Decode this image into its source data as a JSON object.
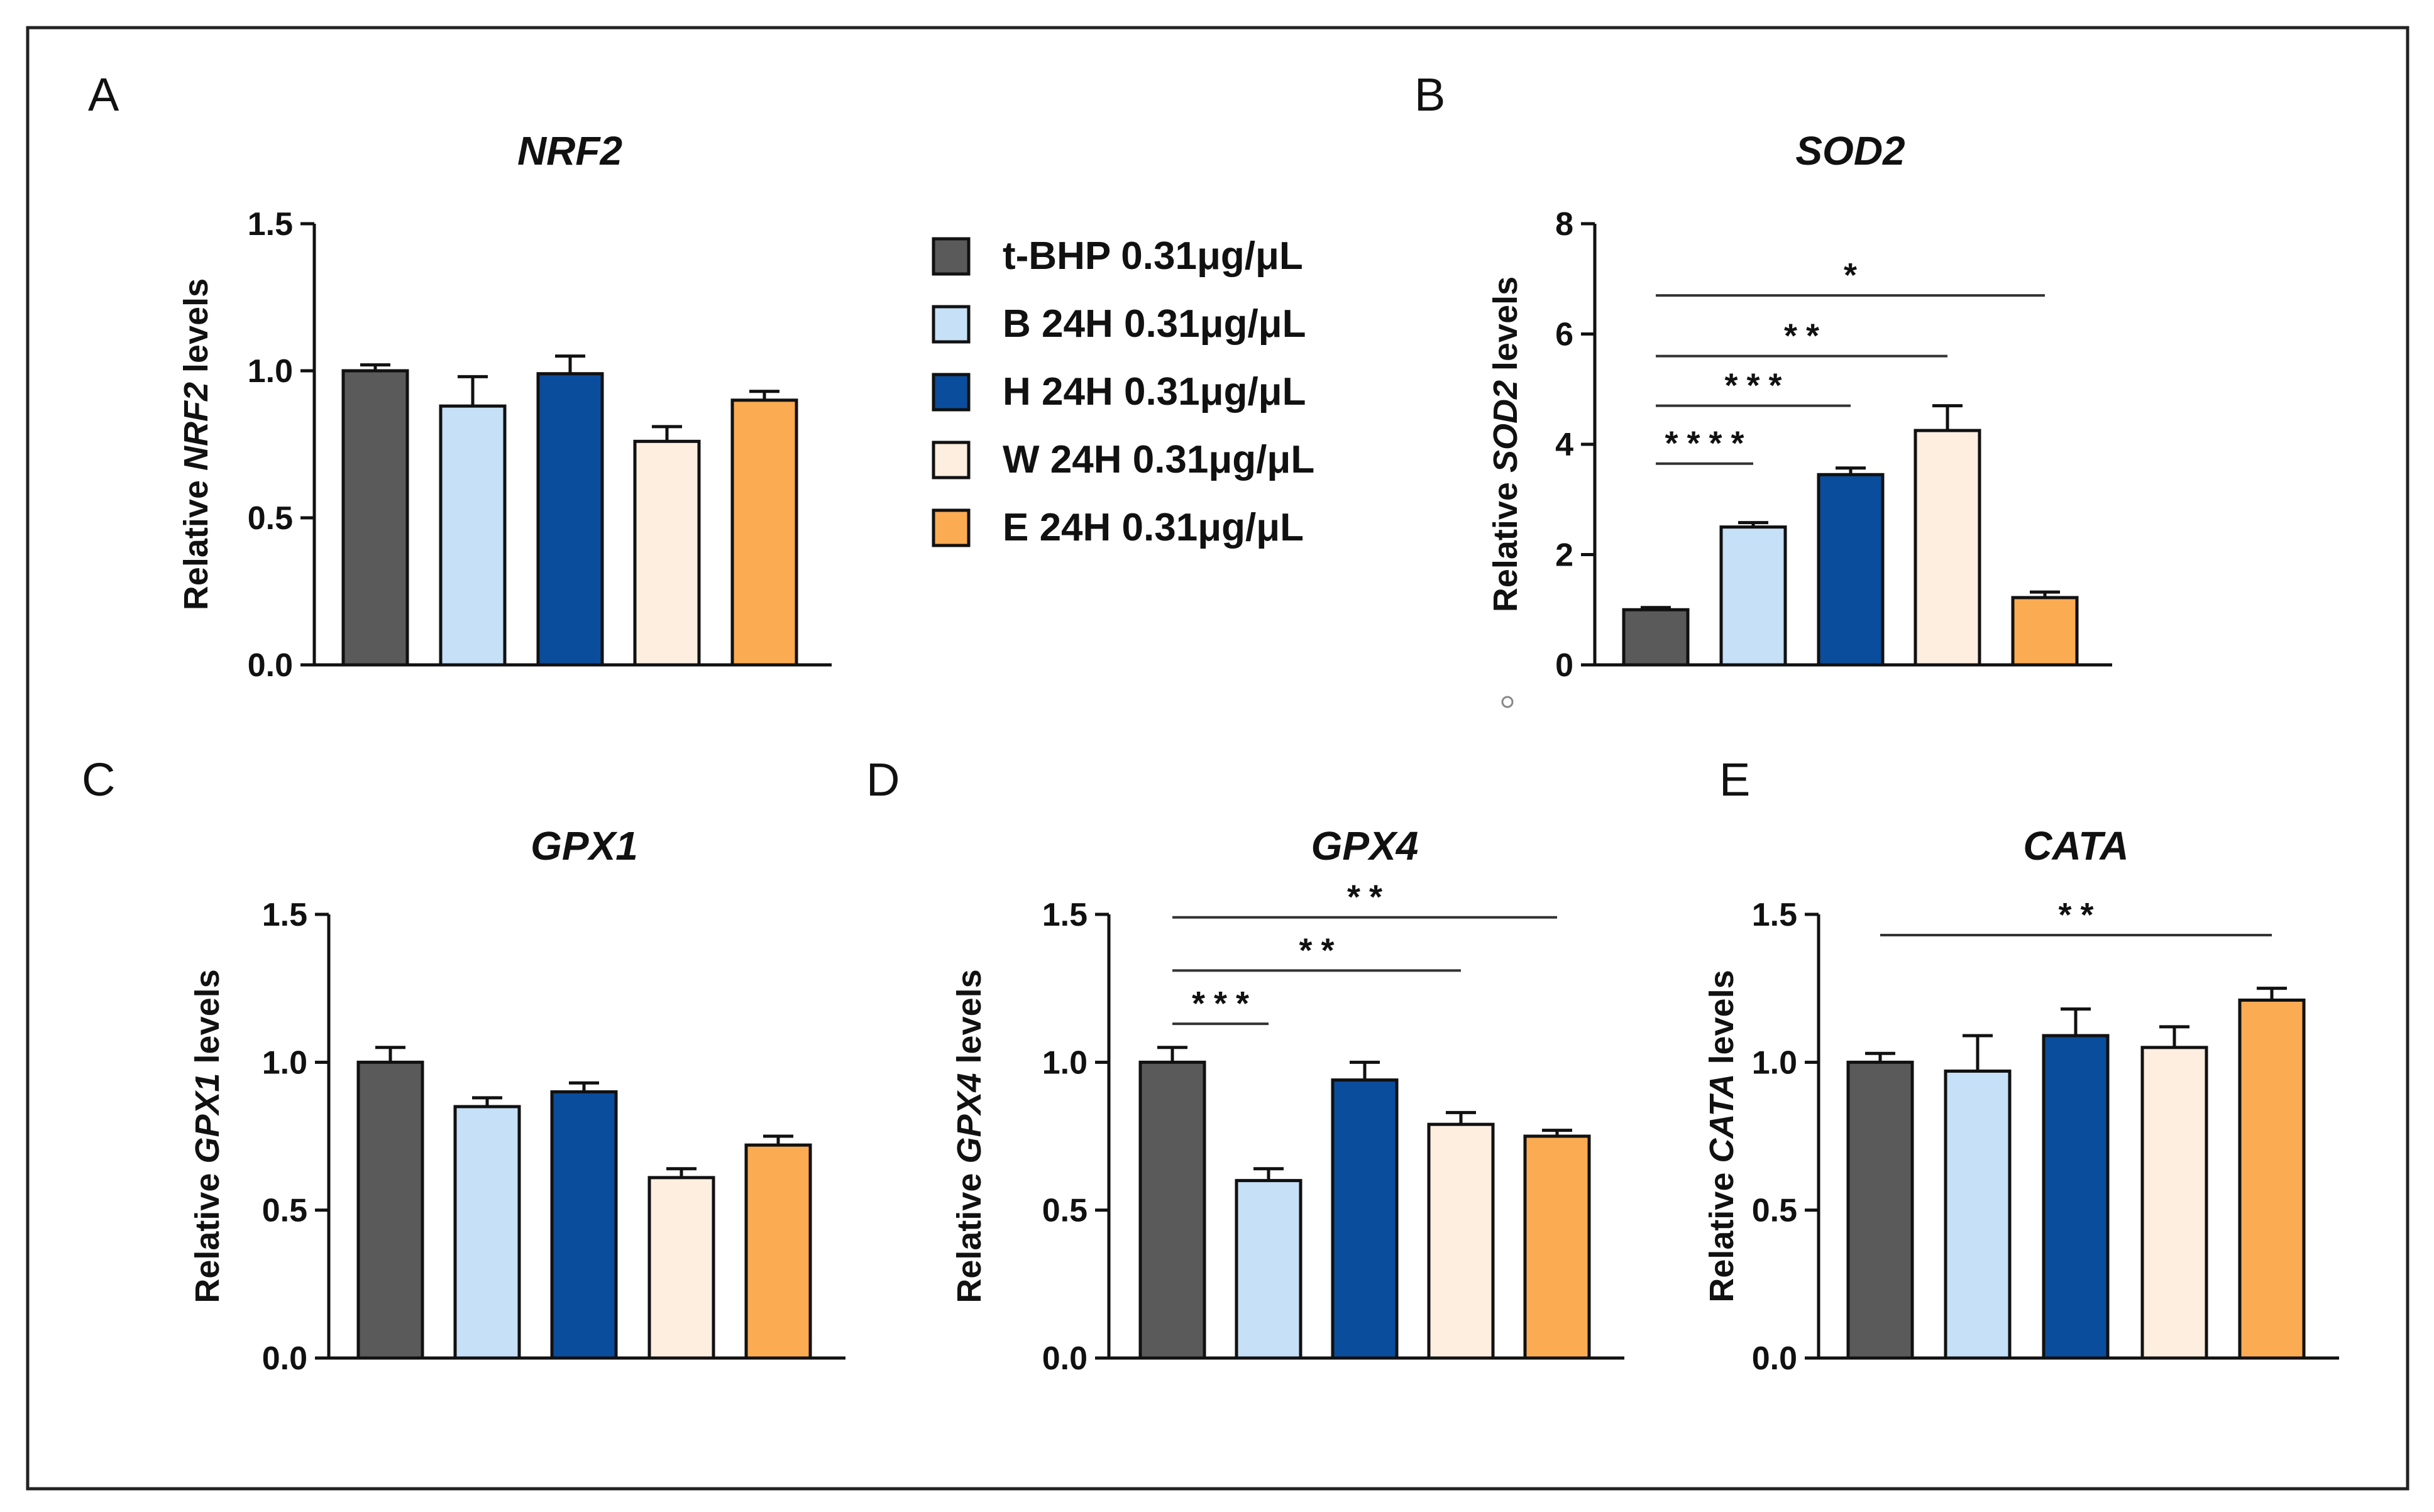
{
  "colors": {
    "tbhp": "#5a5a5a",
    "b24": "#c5e0f7",
    "h24": "#0a4d9c",
    "w24": "#fdeee0",
    "e24": "#fbab52",
    "stroke": "#111111"
  },
  "legend": [
    {
      "label": "t-BHP 0.31μg/μL",
      "color_key": "tbhp"
    },
    {
      "label": "B 24H 0.31μg/μL",
      "color_key": "b24"
    },
    {
      "label": "H 24H 0.31μg/μL",
      "color_key": "h24"
    },
    {
      "label": "W 24H 0.31μg/μL",
      "color_key": "w24"
    },
    {
      "label": "E 24H 0.31μg/μL",
      "color_key": "e24"
    }
  ],
  "chart_data": [
    {
      "panel": "A",
      "type": "bar",
      "title": "NRF2",
      "ylabel_pre": "Relative ",
      "ylabel_gene": "NRF2",
      "ylabel_post": " levels",
      "categories": [
        "t-BHP 0.31μg/μL",
        "B 24H 0.31μg/μL",
        "H 24H 0.31μg/μL",
        "W 24H 0.31μg/μL",
        "E 24H 0.31μg/μL"
      ],
      "values": [
        1.0,
        0.88,
        0.99,
        0.76,
        0.9
      ],
      "errors": [
        0.02,
        0.1,
        0.06,
        0.05,
        0.03
      ],
      "ylim": [
        0,
        1.5
      ],
      "yticks": [
        0,
        0.5,
        1.0,
        1.5
      ],
      "ytick_labels": [
        "0.0",
        "0.5",
        "1.0",
        "1.5"
      ],
      "significance": []
    },
    {
      "panel": "B",
      "type": "bar",
      "title": "SOD2",
      "ylabel_pre": "Relative ",
      "ylabel_gene": "SOD2",
      "ylabel_post": " levels",
      "categories": [
        "t-BHP 0.31μg/μL",
        "B 24H 0.31μg/μL",
        "H 24H 0.31μg/μL",
        "W 24H 0.31μg/μL",
        "E 24H 0.31μg/μL"
      ],
      "values": [
        1.0,
        2.5,
        3.45,
        4.25,
        1.22
      ],
      "errors": [
        0.04,
        0.08,
        0.12,
        0.45,
        0.1
      ],
      "ylim": [
        0,
        8
      ],
      "yticks": [
        0,
        2,
        4,
        6,
        8
      ],
      "ytick_labels": [
        "0",
        "2",
        "4",
        "6",
        "8"
      ],
      "significance": [
        {
          "from": 0,
          "to": 1,
          "y": 3.65,
          "label": "****"
        },
        {
          "from": 0,
          "to": 2,
          "y": 4.7,
          "label": "***"
        },
        {
          "from": 0,
          "to": 3,
          "y": 5.6,
          "label": "**"
        },
        {
          "from": 0,
          "to": 4,
          "y": 6.7,
          "label": "*"
        }
      ]
    },
    {
      "panel": "C",
      "type": "bar",
      "title": "GPX1",
      "ylabel_pre": "Relative ",
      "ylabel_gene": "GPX1",
      "ylabel_post": " levels",
      "categories": [
        "t-BHP 0.31μg/μL",
        "B 24H 0.31μg/μL",
        "H 24H 0.31μg/μL",
        "W 24H 0.31μg/μL",
        "E 24H 0.31μg/μL"
      ],
      "values": [
        1.0,
        0.85,
        0.9,
        0.61,
        0.72
      ],
      "errors": [
        0.05,
        0.03,
        0.03,
        0.03,
        0.03
      ],
      "ylim": [
        0,
        1.5
      ],
      "yticks": [
        0,
        0.5,
        1.0,
        1.5
      ],
      "ytick_labels": [
        "0.0",
        "0.5",
        "1.0",
        "1.5"
      ],
      "significance": []
    },
    {
      "panel": "D",
      "type": "bar",
      "title": "GPX4",
      "ylabel_pre": "Relative ",
      "ylabel_gene": "GPX4",
      "ylabel_post": " levels",
      "categories": [
        "t-BHP 0.31μg/μL",
        "B 24H 0.31μg/μL",
        "H 24H 0.31μg/μL",
        "W 24H 0.31μg/μL",
        "E 24H 0.31μg/μL"
      ],
      "values": [
        1.0,
        0.6,
        0.94,
        0.79,
        0.75
      ],
      "errors": [
        0.05,
        0.04,
        0.06,
        0.04,
        0.02
      ],
      "ylim": [
        0,
        1.5
      ],
      "yticks": [
        0,
        0.5,
        1.0,
        1.5
      ],
      "ytick_labels": [
        "0.0",
        "0.5",
        "1.0",
        "1.5"
      ],
      "significance": [
        {
          "from": 0,
          "to": 1,
          "y": 1.13,
          "label": "***"
        },
        {
          "from": 0,
          "to": 3,
          "y": 1.31,
          "label": "**"
        },
        {
          "from": 0,
          "to": 4,
          "y": 1.49,
          "label": "**"
        }
      ]
    },
    {
      "panel": "E",
      "type": "bar",
      "title": "CATA",
      "ylabel_pre": "Relative ",
      "ylabel_gene": "CATA",
      "ylabel_post": " levels",
      "categories": [
        "t-BHP 0.31μg/μL",
        "B 24H 0.31μg/μL",
        "H 24H 0.31μg/μL",
        "W 24H 0.31μg/μL",
        "E 24H 0.31μg/μL"
      ],
      "values": [
        1.0,
        0.97,
        1.09,
        1.05,
        1.21
      ],
      "errors": [
        0.03,
        0.12,
        0.09,
        0.07,
        0.04
      ],
      "ylim": [
        0,
        1.5
      ],
      "yticks": [
        0,
        0.5,
        1.0,
        1.5
      ],
      "ytick_labels": [
        "0.0",
        "0.5",
        "1.0",
        "1.5"
      ],
      "significance": [
        {
          "from": 0,
          "to": 4,
          "y": 1.43,
          "label": "**"
        }
      ]
    }
  ]
}
